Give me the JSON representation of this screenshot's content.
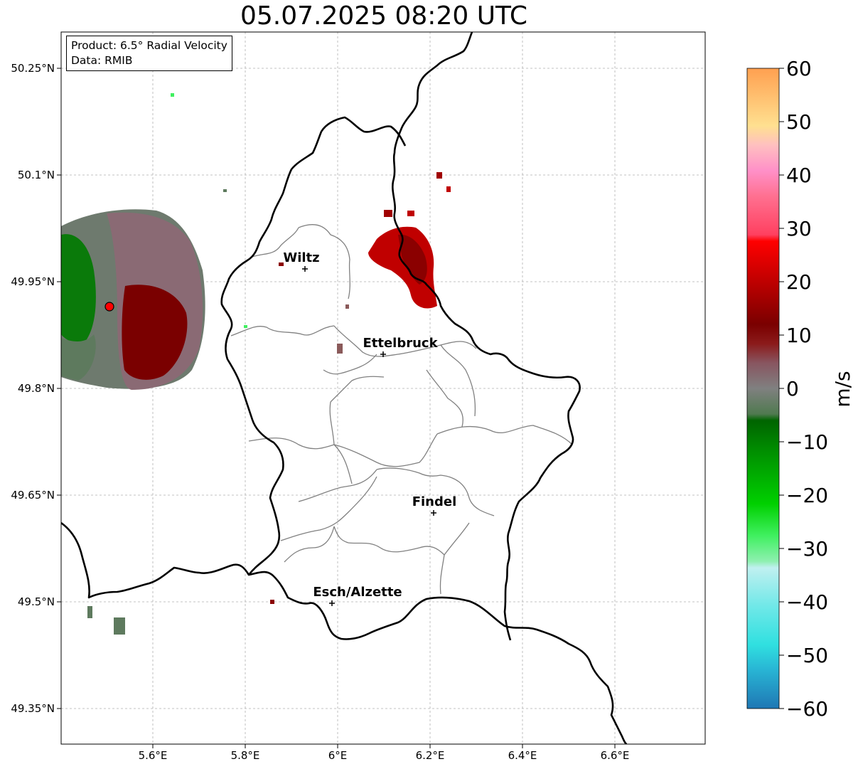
{
  "title": "05.07.2025 08:20 UTC",
  "info": {
    "product": "Product: 6.5° Radial Velocity",
    "source": "Data: RMIB"
  },
  "axes": {
    "lon_ticks": [
      "5.6°E",
      "5.8°E",
      "6°E",
      "6.2°E",
      "6.4°E",
      "6.6°E"
    ],
    "lat_ticks": [
      "50.25°N",
      "50.1°N",
      "49.95°N",
      "49.8°N",
      "49.65°N",
      "49.5°N",
      "49.35°N"
    ]
  },
  "cities": [
    {
      "name": "Wiltz"
    },
    {
      "name": "Ettelbruck"
    },
    {
      "name": "Findel"
    },
    {
      "name": "Esch/Alzette"
    }
  ],
  "colorbar": {
    "unit": "m/s",
    "ticks": [
      "60",
      "50",
      "40",
      "30",
      "20",
      "10",
      "0",
      "−10",
      "−20",
      "−30",
      "−40",
      "−50",
      "−60"
    ],
    "min": -60,
    "max": 60
  },
  "colors": {
    "border_country": "#000000",
    "border_canton": "#808080",
    "approaching": "#008000",
    "receding": "#8b0000",
    "radar_site": "#ff0000"
  }
}
